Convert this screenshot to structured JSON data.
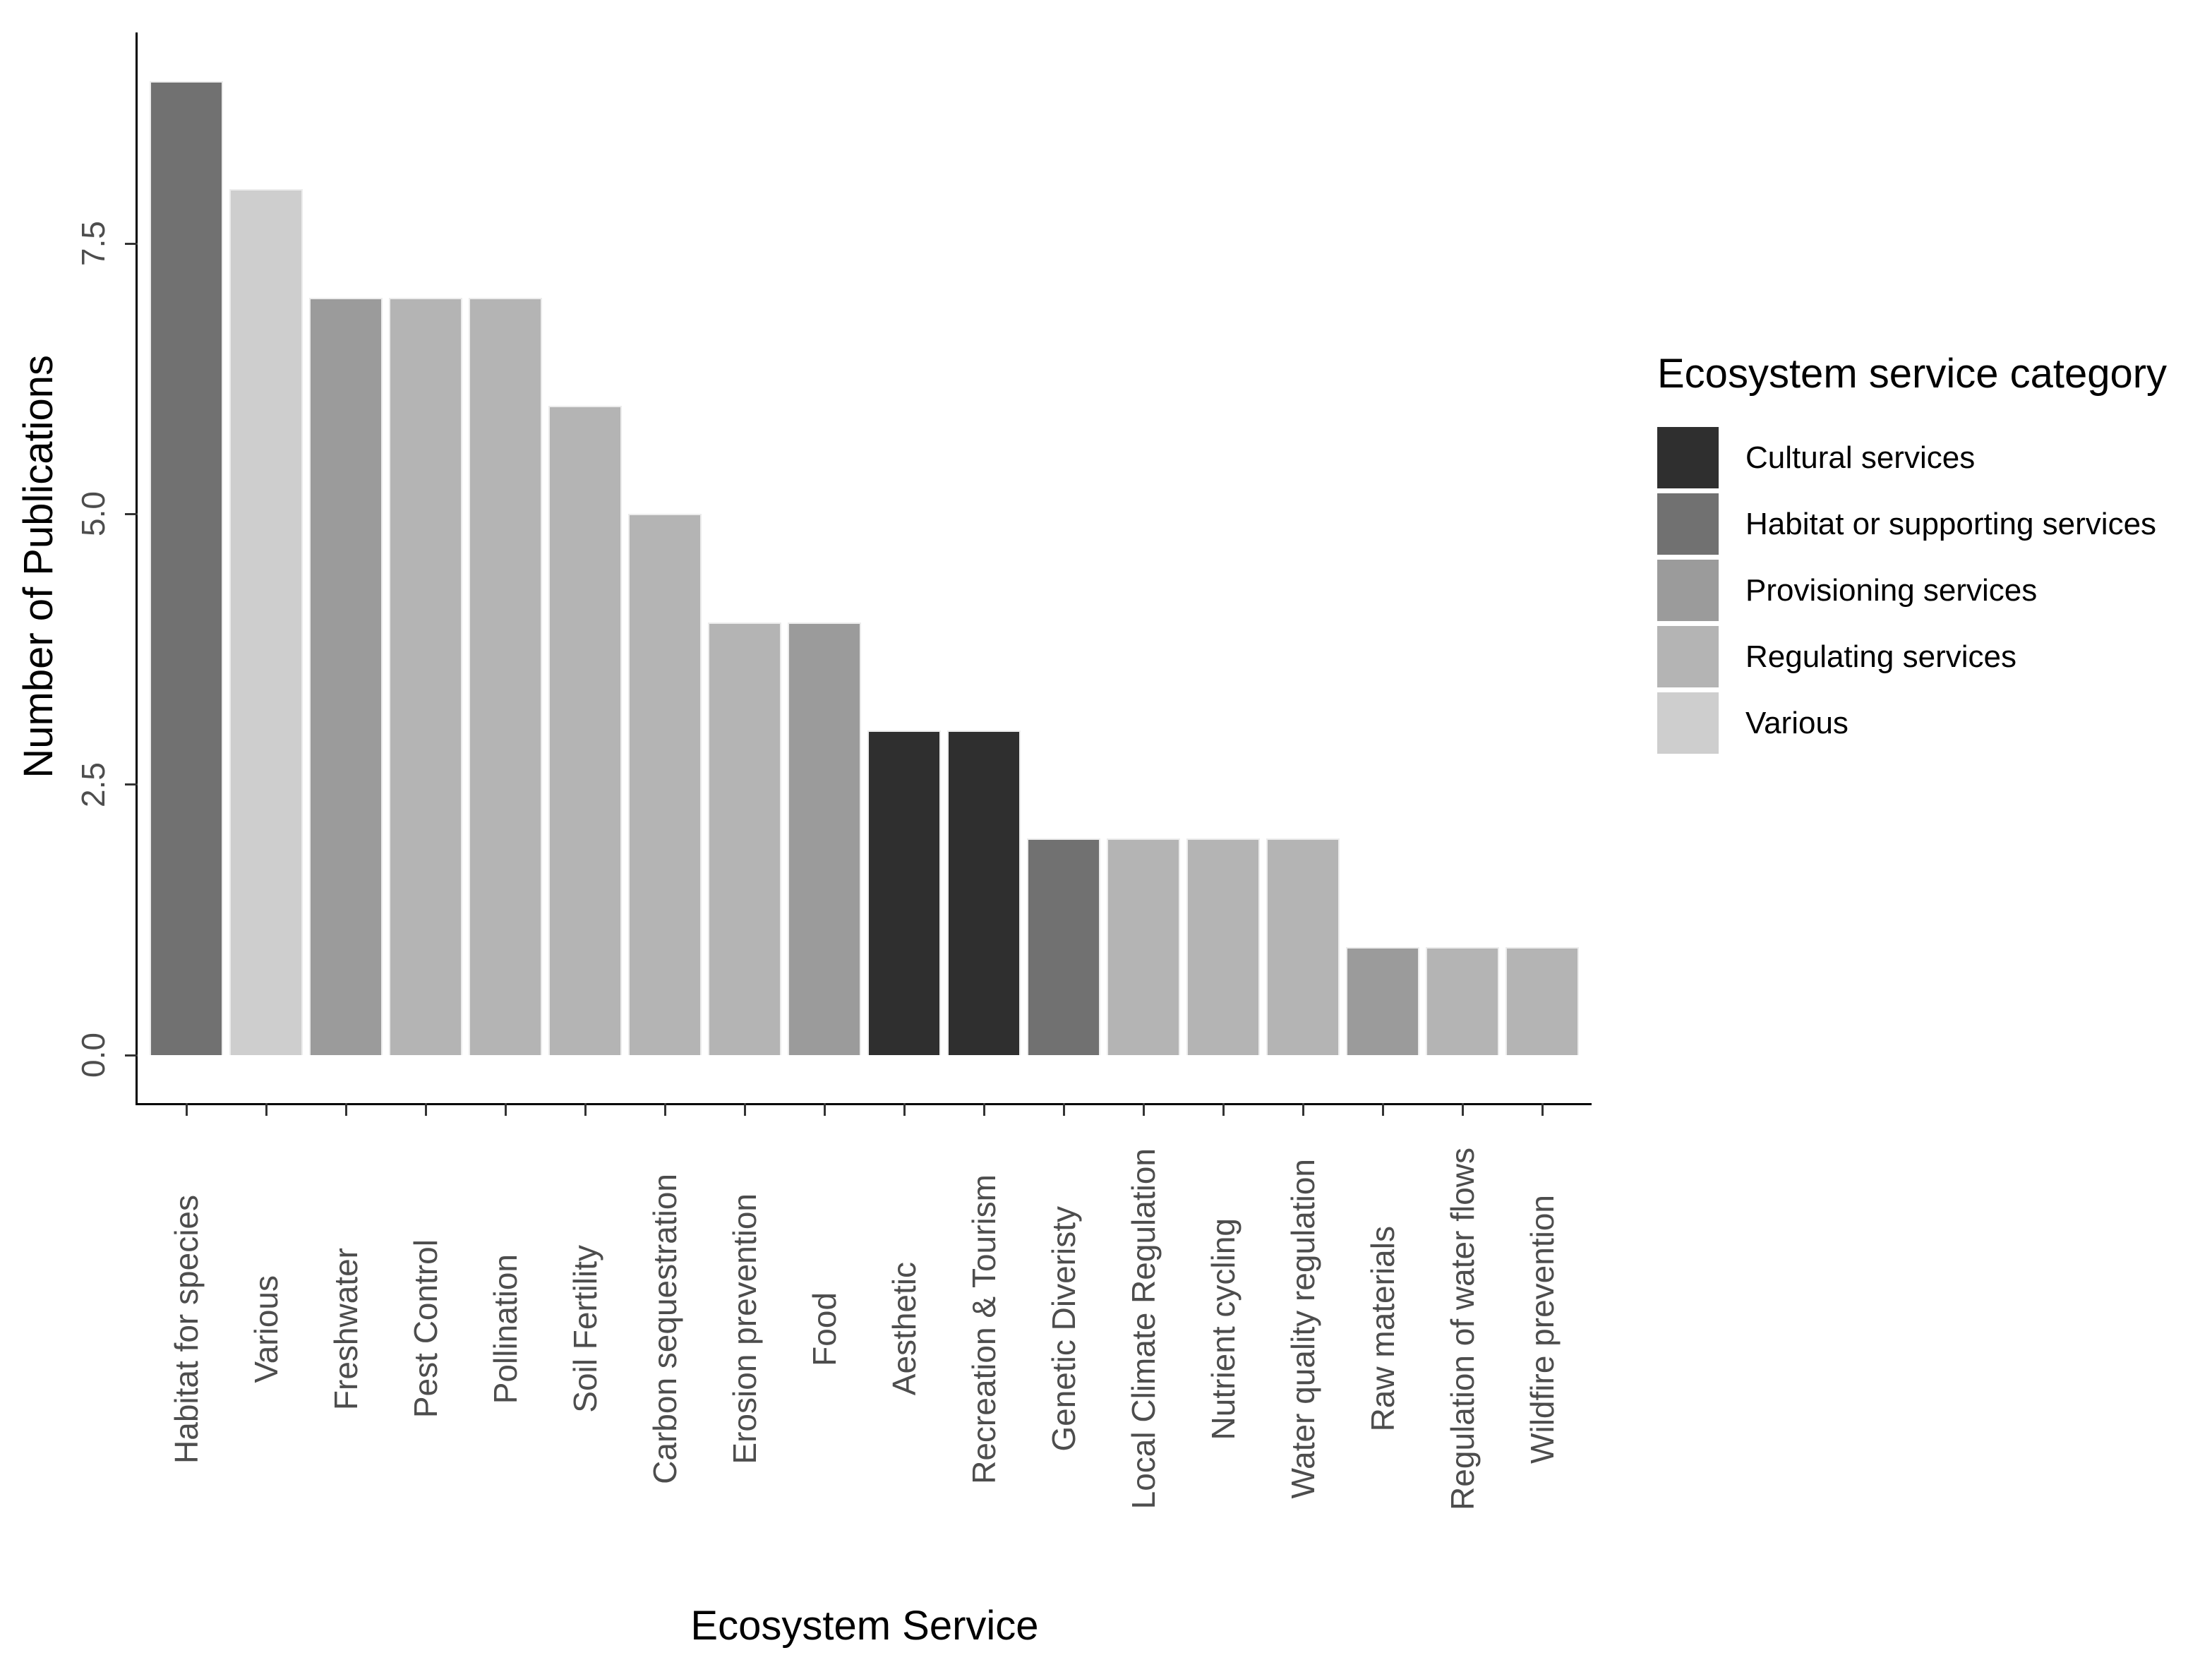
{
  "chart_data": {
    "type": "bar",
    "title": "",
    "xlabel": "Ecosystem Service",
    "ylabel": "Number of Publications",
    "ylim": [
      0,
      9.45
    ],
    "grid": false,
    "legend_position": "right",
    "y_ticks": [
      {
        "value": 0.0,
        "label": "0.0"
      },
      {
        "value": 2.5,
        "label": "2.5"
      },
      {
        "value": 5.0,
        "label": "5.0"
      },
      {
        "value": 7.5,
        "label": "7.5"
      }
    ],
    "categories": [
      "Habitat for species",
      "Various",
      "Freshwater",
      "Pest Control",
      "Pollination",
      "Soil Fertility",
      "Carbon sequestration",
      "Erosion prevention",
      "Food",
      "Aesthetic",
      "Recreation & Tourism",
      "Genetic Diveristy",
      "Local Climate Regulation",
      "Nutrient cycling",
      "Water quality regulation",
      "Raw materials",
      "Regulation of water flows",
      "Wildfire prevention"
    ],
    "values": [
      9,
      8,
      7,
      7,
      7,
      6,
      5,
      4,
      4,
      3,
      3,
      2,
      2,
      2,
      2,
      1,
      1,
      1
    ],
    "bar_category_keys": [
      "habitat",
      "various",
      "provisioning",
      "regulating",
      "regulating",
      "regulating",
      "regulating",
      "regulating",
      "provisioning",
      "cultural",
      "cultural",
      "habitat",
      "regulating",
      "regulating",
      "regulating",
      "provisioning",
      "regulating",
      "regulating"
    ],
    "legend": {
      "title": "Ecosystem service category",
      "entries": [
        {
          "key": "cultural",
          "label": "Cultural services",
          "color": "#2f2f2f"
        },
        {
          "key": "habitat",
          "label": "Habitat or supporting services",
          "color": "#717171"
        },
        {
          "key": "provisioning",
          "label": "Provisioning services",
          "color": "#9b9b9b"
        },
        {
          "key": "regulating",
          "label": "Regulating services",
          "color": "#b4b4b4"
        },
        {
          "key": "various",
          "label": "Various",
          "color": "#cecece"
        }
      ]
    },
    "colors": {
      "axis_line": "#000000",
      "tick_mark": "#333333",
      "axis_text": "#4d4d4d",
      "title_text": "#000000",
      "background": "#ffffff"
    }
  }
}
